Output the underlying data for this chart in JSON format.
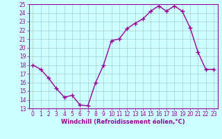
{
  "x": [
    0,
    1,
    2,
    3,
    4,
    5,
    6,
    7,
    8,
    9,
    10,
    11,
    12,
    13,
    14,
    15,
    16,
    17,
    18,
    19,
    20,
    21,
    22,
    23
  ],
  "y": [
    18.0,
    17.5,
    16.5,
    15.3,
    14.3,
    14.5,
    13.4,
    13.3,
    16.0,
    18.0,
    20.8,
    21.0,
    22.2,
    22.8,
    23.3,
    24.2,
    24.8,
    24.2,
    24.8,
    24.2,
    22.3,
    19.5,
    17.5,
    17.5
  ],
  "line_color": "#990099",
  "marker": "+",
  "marker_size": 4,
  "marker_lw": 1.0,
  "line_width": 1.0,
  "bg_color": "#ccffff",
  "grid_color": "#aacccc",
  "xlabel": "Windchill (Refroidissement éolien,°C)",
  "xlabel_color": "#990099",
  "tick_color": "#990099",
  "spine_color": "#990099",
  "ylim": [
    13,
    25
  ],
  "xlim": [
    -0.5,
    23.5
  ],
  "yticks": [
    13,
    14,
    15,
    16,
    17,
    18,
    19,
    20,
    21,
    22,
    23,
    24,
    25
  ],
  "xticks": [
    0,
    1,
    2,
    3,
    4,
    5,
    6,
    7,
    8,
    9,
    10,
    11,
    12,
    13,
    14,
    15,
    16,
    17,
    18,
    19,
    20,
    21,
    22,
    23
  ],
  "tick_labelsize": 5.5,
  "xlabel_fontsize": 6.0,
  "xlabel_bold": true
}
